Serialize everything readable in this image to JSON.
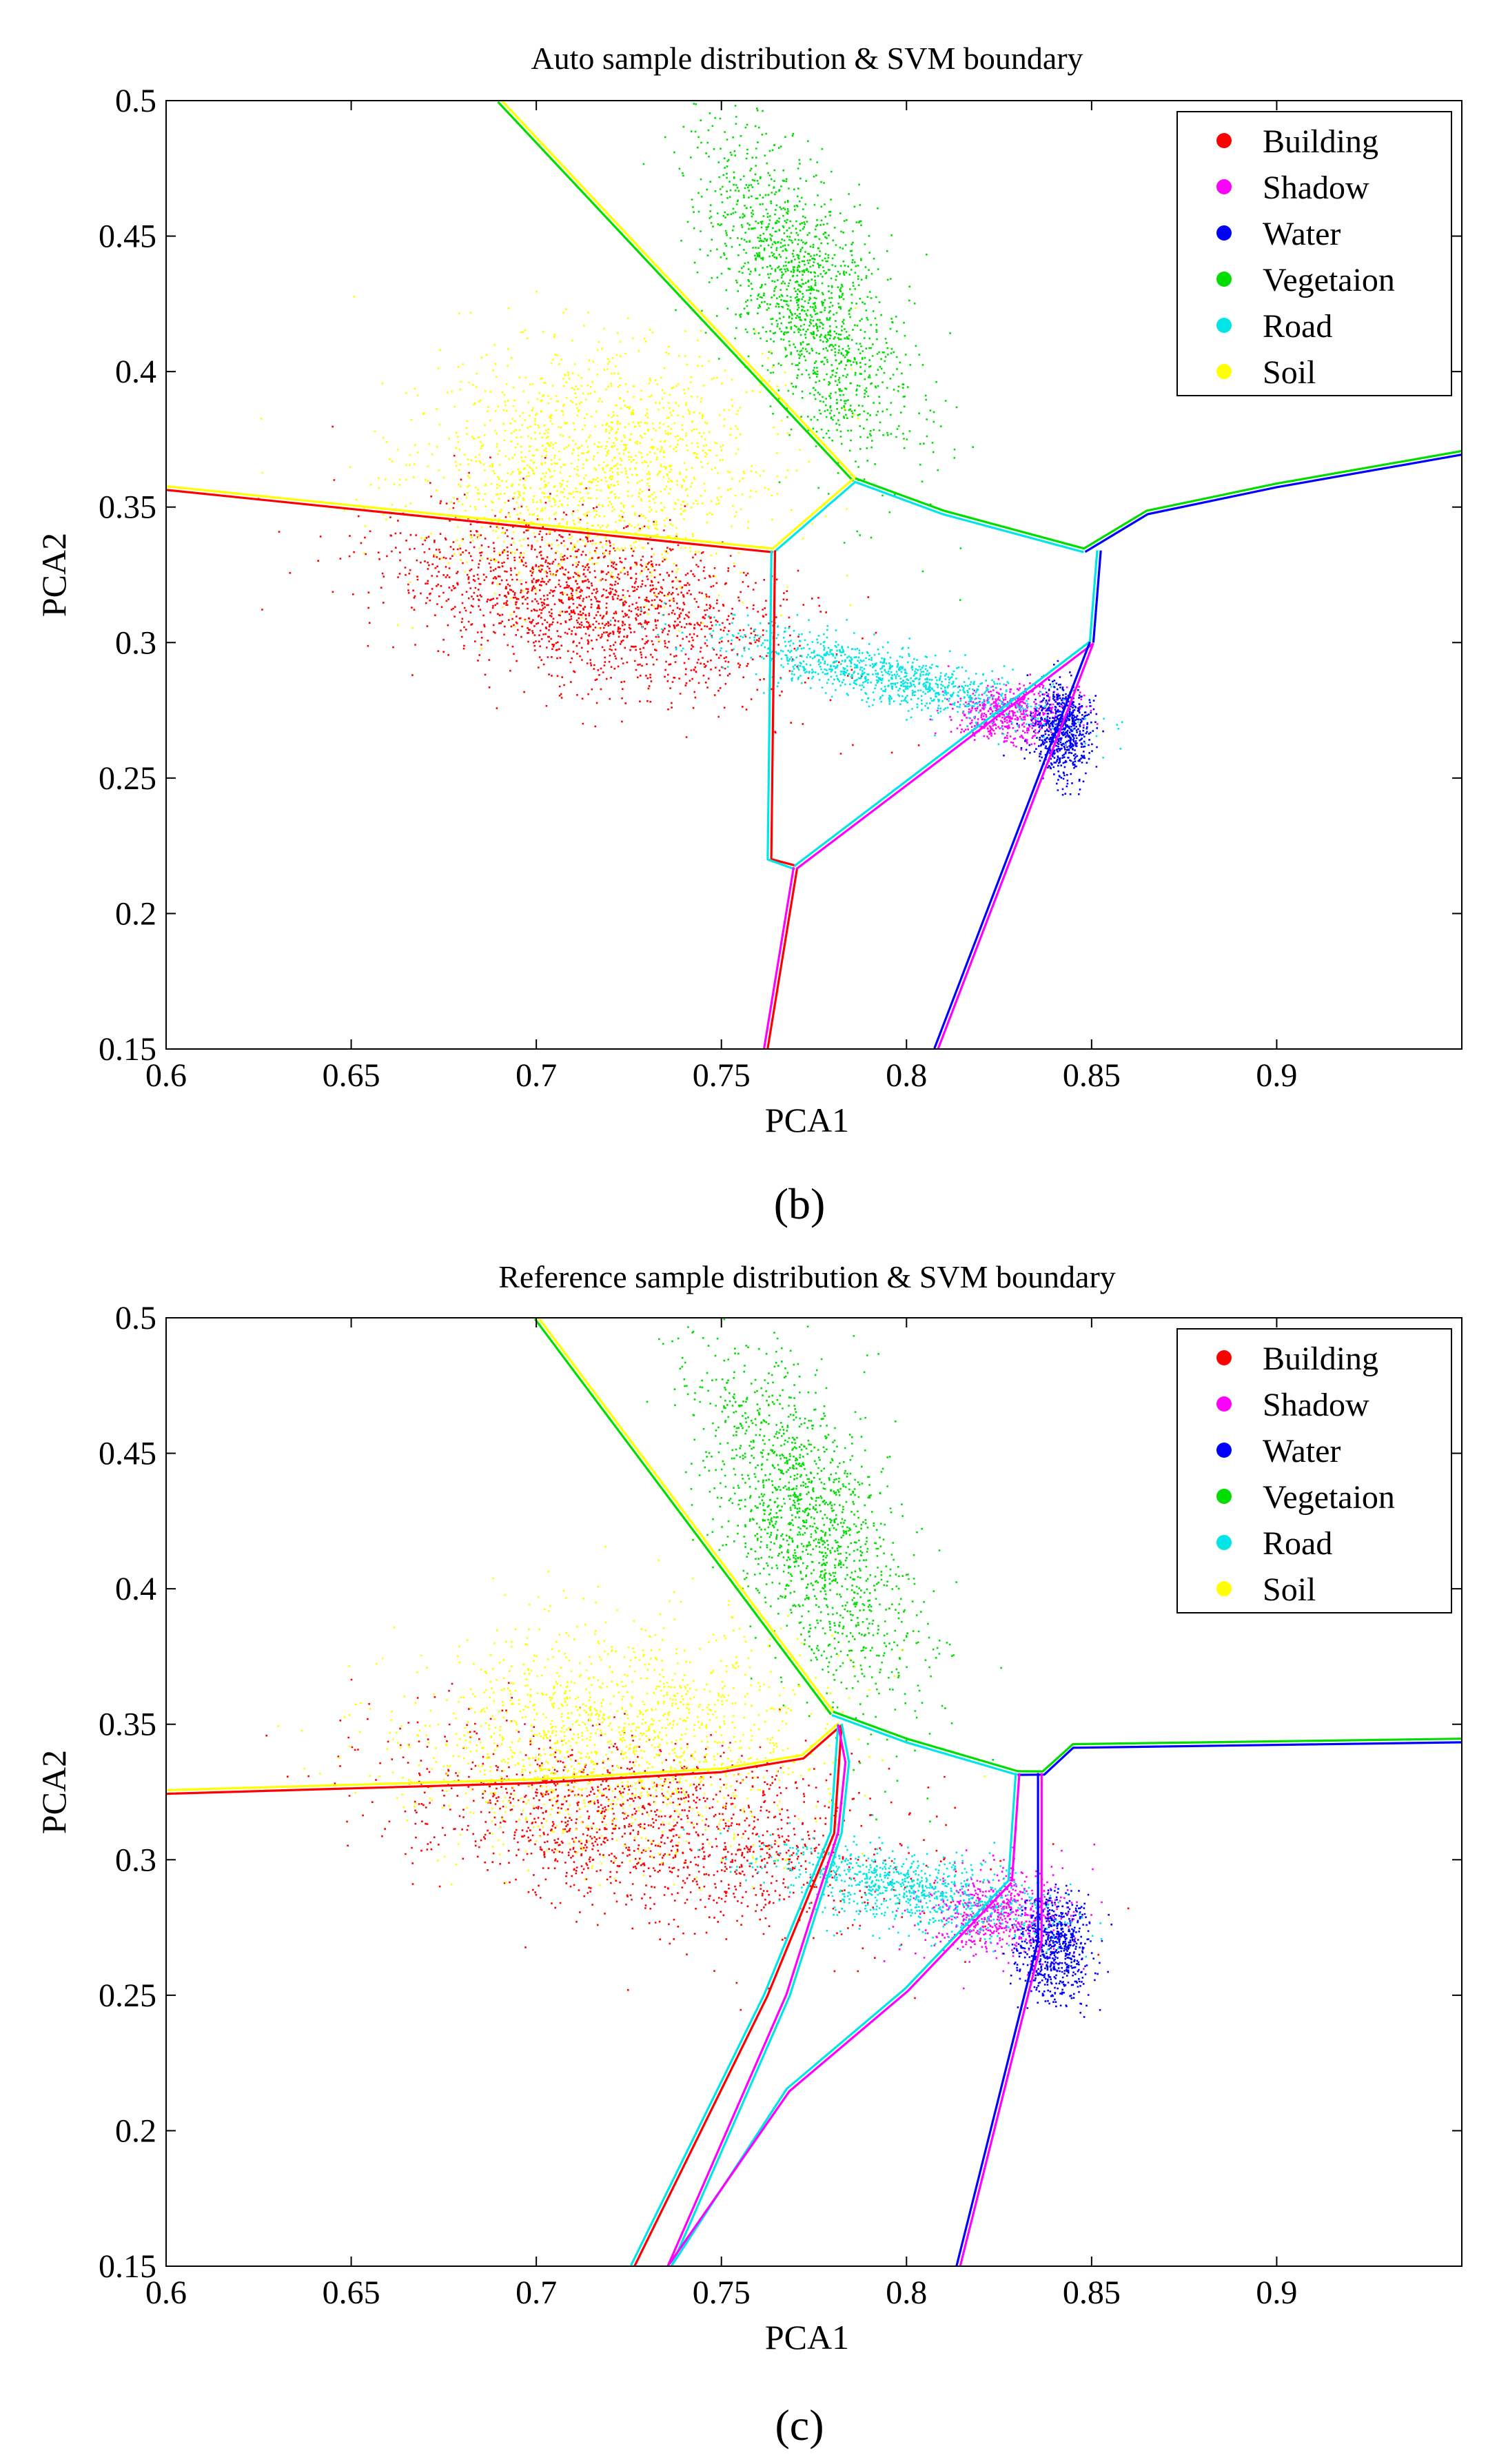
{
  "chart_data": [
    {
      "type": "scatter",
      "panel": "b",
      "caption": "(b)",
      "title": "Auto sample distribution & SVM boundary",
      "xlabel": "PCA1",
      "ylabel": "PCA2",
      "xlim": [
        0.6,
        0.95
      ],
      "ylim": [
        0.15,
        0.5
      ],
      "xticks": [
        0.6,
        0.65,
        0.7,
        0.75,
        0.8,
        0.85,
        0.9
      ],
      "xtick_labels": [
        "0.6",
        "0.65",
        "0.7",
        "0.75",
        "0.8",
        "0.85",
        "0.9"
      ],
      "yticks": [
        0.15,
        0.2,
        0.25,
        0.3,
        0.35,
        0.4,
        0.45,
        0.5
      ],
      "ytick_labels": [
        "0.15",
        "0.2",
        "0.25",
        "0.3",
        "0.35",
        "0.4",
        "0.45",
        "0.5"
      ],
      "legend_position": "top-right",
      "series": [
        {
          "name": "Building",
          "color": "#ff0000",
          "cx": 0.715,
          "cy": 0.315,
          "sx": 0.028,
          "sy": 0.014,
          "rot": -0.35,
          "n": 1700
        },
        {
          "name": "Shadow",
          "color": "#ff00ff",
          "cx": 0.828,
          "cy": 0.274,
          "sx": 0.008,
          "sy": 0.005,
          "rot": 0.0,
          "n": 600
        },
        {
          "name": "Water",
          "color": "#0000ff",
          "cx": 0.842,
          "cy": 0.268,
          "sx": 0.004,
          "sy": 0.009,
          "rot": 0.0,
          "n": 700
        },
        {
          "name": "Vegetaion",
          "color": "#00dd00",
          "cx": 0.772,
          "cy": 0.43,
          "sx": 0.01,
          "sy": 0.032,
          "rot": 0.32,
          "n": 1500
        },
        {
          "name": "Road",
          "color": "#00e6e6",
          "cx": 0.795,
          "cy": 0.288,
          "sx": 0.025,
          "sy": 0.005,
          "rot": -0.32,
          "n": 1000
        },
        {
          "name": "Soil",
          "color": "#ffff00",
          "cx": 0.715,
          "cy": 0.365,
          "sx": 0.024,
          "sy": 0.022,
          "rot": 0.0,
          "n": 1500
        }
      ],
      "boundaries": [
        {
          "colors": [
            "#ffff00",
            "#00dd00"
          ],
          "points": [
            [
              0.69,
              0.5
            ],
            [
              0.786,
              0.36
            ]
          ]
        },
        {
          "colors": [
            "#00dd00",
            "#00e6e6"
          ],
          "points": [
            [
              0.786,
              0.36
            ],
            [
              0.81,
              0.348
            ],
            [
              0.848,
              0.334
            ]
          ]
        },
        {
          "colors": [
            "#00dd00",
            "#0000ff"
          ],
          "points": [
            [
              0.848,
              0.334
            ],
            [
              0.865,
              0.348
            ],
            [
              0.9,
              0.358
            ],
            [
              0.95,
              0.37
            ]
          ]
        },
        {
          "colors": [
            "#ffff00",
            "#ff0000"
          ],
          "points": [
            [
              0.6,
              0.357
            ],
            [
              0.764,
              0.334
            ]
          ]
        },
        {
          "colors": [
            "#ffff00",
            "#00e6e6"
          ],
          "points": [
            [
              0.764,
              0.334
            ],
            [
              0.786,
              0.36
            ]
          ]
        },
        {
          "colors": [
            "#ff0000",
            "#00e6e6"
          ],
          "points": [
            [
              0.764,
              0.334
            ],
            [
              0.763,
              0.22
            ],
            [
              0.77,
              0.217
            ]
          ]
        },
        {
          "colors": [
            "#ff0000",
            "#ff00ff"
          ],
          "points": [
            [
              0.77,
              0.217
            ],
            [
              0.762,
              0.15
            ]
          ]
        },
        {
          "colors": [
            "#00e6e6",
            "#ff00ff"
          ],
          "points": [
            [
              0.77,
              0.217
            ],
            [
              0.85,
              0.3
            ]
          ]
        },
        {
          "colors": [
            "#00e6e6",
            "#0000ff"
          ],
          "points": [
            [
              0.85,
              0.3
            ],
            [
              0.852,
              0.334
            ]
          ]
        },
        {
          "colors": [
            "#ff00ff",
            "#0000ff"
          ],
          "points": [
            [
              0.85,
              0.3
            ],
            [
              0.808,
              0.15
            ]
          ]
        }
      ]
    },
    {
      "type": "scatter",
      "panel": "c",
      "caption": "(c)",
      "title": "Reference sample distribution & SVM boundary",
      "xlabel": "PCA1",
      "ylabel": "PCA2",
      "xlim": [
        0.6,
        0.95
      ],
      "ylim": [
        0.15,
        0.5
      ],
      "xticks": [
        0.6,
        0.65,
        0.7,
        0.75,
        0.8,
        0.85,
        0.9
      ],
      "xtick_labels": [
        "0.6",
        "0.65",
        "0.7",
        "0.75",
        "0.8",
        "0.85",
        "0.9"
      ],
      "yticks": [
        0.15,
        0.2,
        0.25,
        0.3,
        0.35,
        0.4,
        0.45,
        0.5
      ],
      "ytick_labels": [
        "0.15",
        "0.2",
        "0.25",
        "0.3",
        "0.35",
        "0.4",
        "0.45",
        "0.5"
      ],
      "legend_position": "top-right",
      "series": [
        {
          "name": "Building",
          "color": "#ff0000",
          "cx": 0.73,
          "cy": 0.312,
          "sx": 0.035,
          "sy": 0.016,
          "rot": -0.3,
          "n": 1500
        },
        {
          "name": "Shadow",
          "color": "#ff00ff",
          "cx": 0.824,
          "cy": 0.28,
          "sx": 0.01,
          "sy": 0.008,
          "rot": 0.0,
          "n": 650
        },
        {
          "name": "Water",
          "color": "#0000ff",
          "cx": 0.84,
          "cy": 0.268,
          "sx": 0.005,
          "sy": 0.01,
          "rot": 0.0,
          "n": 700
        },
        {
          "name": "Vegetaion",
          "color": "#00dd00",
          "cx": 0.773,
          "cy": 0.425,
          "sx": 0.011,
          "sy": 0.035,
          "rot": 0.3,
          "n": 1500
        },
        {
          "name": "Road",
          "color": "#00e6e6",
          "cx": 0.8,
          "cy": 0.29,
          "sx": 0.02,
          "sy": 0.007,
          "rot": -0.3,
          "n": 900
        },
        {
          "name": "Soil",
          "color": "#ffff00",
          "cx": 0.72,
          "cy": 0.345,
          "sx": 0.028,
          "sy": 0.02,
          "rot": 0.0,
          "n": 1500
        }
      ],
      "boundaries": [
        {
          "colors": [
            "#ffff00",
            "#00dd00"
          ],
          "points": [
            [
              0.7,
              0.5
            ],
            [
              0.78,
              0.354
            ]
          ]
        },
        {
          "colors": [
            "#00dd00",
            "#00e6e6"
          ],
          "points": [
            [
              0.78,
              0.354
            ],
            [
              0.8,
              0.344
            ],
            [
              0.83,
              0.332
            ]
          ]
        },
        {
          "colors": [
            "#00dd00",
            "#0000ff"
          ],
          "points": [
            [
              0.83,
              0.332
            ],
            [
              0.837,
              0.332
            ],
            [
              0.845,
              0.342
            ],
            [
              0.95,
              0.344
            ]
          ]
        },
        {
          "colors": [
            "#ffff00",
            "#ff0000"
          ],
          "points": [
            [
              0.6,
              0.325
            ],
            [
              0.7,
              0.329
            ],
            [
              0.75,
              0.333
            ],
            [
              0.772,
              0.338
            ],
            [
              0.782,
              0.35
            ]
          ]
        },
        {
          "colors": [
            "#ff0000",
            "#00e6e6"
          ],
          "points": [
            [
              0.782,
              0.35
            ],
            [
              0.78,
              0.31
            ],
            [
              0.762,
              0.25
            ],
            [
              0.726,
              0.15
            ]
          ]
        },
        {
          "colors": [
            "#00e6e6",
            "#ff00ff"
          ],
          "points": [
            [
              0.782,
              0.35
            ],
            [
              0.784,
              0.336
            ],
            [
              0.782,
              0.31
            ],
            [
              0.768,
              0.25
            ],
            [
              0.736,
              0.15
            ],
            [
              0.768,
              0.215
            ],
            [
              0.8,
              0.252
            ],
            [
              0.828,
              0.292
            ]
          ]
        },
        {
          "colors": [
            "#00e6e6",
            "#ff00ff"
          ],
          "points": [
            [
              0.828,
              0.292
            ],
            [
              0.83,
              0.332
            ]
          ]
        },
        {
          "colors": [
            "#ff00ff",
            "#0000ff"
          ],
          "points": [
            [
              0.836,
              0.332
            ],
            [
              0.836,
              0.27
            ],
            [
              0.814,
              0.15
            ]
          ]
        }
      ]
    }
  ]
}
